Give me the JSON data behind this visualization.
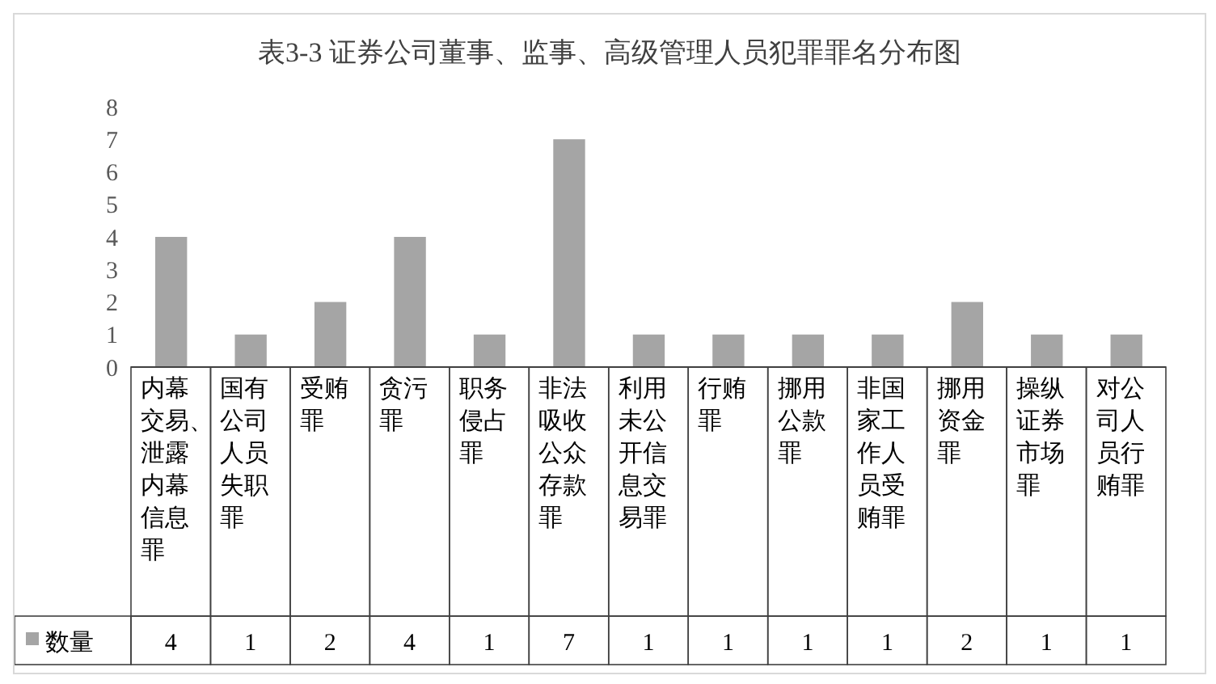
{
  "chart_data": {
    "type": "bar",
    "title": "表3-3 证券公司董事、监事、高级管理人员犯罪罪名分布图",
    "categories": [
      "内幕交易、泄露内幕信息罪",
      "国有公司人员失职罪",
      "受贿罪",
      "贪污罪",
      "职务侵占罪",
      "非法吸收公众存款罪",
      "利用未公开信息交易罪",
      "行贿罪",
      "挪用公款罪",
      "非国家工作人员受贿罪",
      "挪用资金罪",
      "操纵证券市场罪",
      "对公司人员行贿罪"
    ],
    "series": [
      {
        "name": "数量",
        "color": "#a5a5a5",
        "values": [
          4,
          1,
          2,
          4,
          1,
          7,
          1,
          1,
          1,
          1,
          2,
          1,
          1
        ]
      }
    ],
    "ylim": [
      0,
      8
    ],
    "yticks": [
      0,
      1,
      2,
      3,
      4,
      5,
      6,
      7,
      8
    ],
    "grid": false,
    "legend": "bottom left",
    "data_labels": true
  }
}
